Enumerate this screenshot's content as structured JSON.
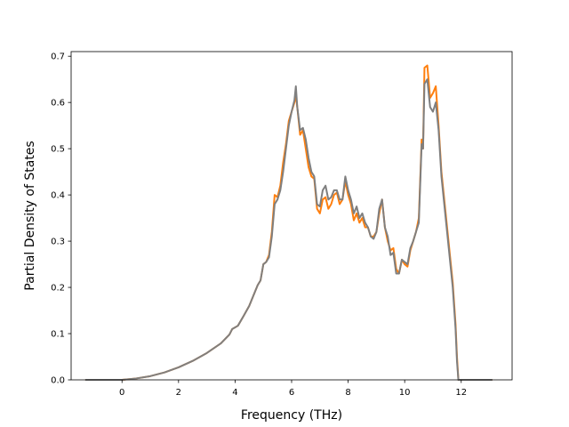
{
  "chart_data": {
    "type": "line",
    "title": "",
    "xlabel": "Frequency (THz)",
    "ylabel": "Partial Density of States",
    "xlim": [
      -1.8,
      13.8
    ],
    "ylim": [
      0.0,
      0.71
    ],
    "xticks": [
      0,
      2,
      4,
      6,
      8,
      10,
      12
    ],
    "xtick_labels": [
      "0",
      "2",
      "4",
      "6",
      "8",
      "10",
      "12"
    ],
    "yticks": [
      0.0,
      0.1,
      0.2,
      0.3,
      0.4,
      0.5,
      0.6,
      0.7
    ],
    "ytick_labels": [
      "0.0",
      "0.1",
      "0.2",
      "0.3",
      "0.4",
      "0.5",
      "0.6",
      "0.7"
    ],
    "grid": false,
    "legend": false,
    "series": [
      {
        "color": "#ff7f0e",
        "x": [
          -1.3,
          0.0,
          0.5,
          1.0,
          1.5,
          2.0,
          2.5,
          3.0,
          3.5,
          3.8,
          3.9,
          4.1,
          4.3,
          4.5,
          4.7,
          4.8,
          4.9,
          5.0,
          5.1,
          5.2,
          5.3,
          5.4,
          5.5,
          5.6,
          5.7,
          5.8,
          5.9,
          6.0,
          6.1,
          6.15,
          6.2,
          6.3,
          6.4,
          6.5,
          6.6,
          6.7,
          6.8,
          6.9,
          7.0,
          7.1,
          7.2,
          7.3,
          7.4,
          7.5,
          7.6,
          7.7,
          7.8,
          7.9,
          8.0,
          8.1,
          8.2,
          8.3,
          8.4,
          8.5,
          8.6,
          8.7,
          8.8,
          8.9,
          9.0,
          9.1,
          9.2,
          9.3,
          9.4,
          9.5,
          9.6,
          9.7,
          9.8,
          9.9,
          10.0,
          10.1,
          10.2,
          10.3,
          10.4,
          10.5,
          10.6,
          10.65,
          10.7,
          10.8,
          10.9,
          11.0,
          11.1,
          11.2,
          11.3,
          11.5,
          11.7,
          11.8,
          11.85,
          11.9,
          12.0,
          12.5,
          13.1
        ],
        "y": [
          0.0,
          0.0,
          0.003,
          0.008,
          0.016,
          0.027,
          0.041,
          0.058,
          0.079,
          0.098,
          0.11,
          0.117,
          0.138,
          0.16,
          0.19,
          0.205,
          0.215,
          0.25,
          0.255,
          0.27,
          0.32,
          0.4,
          0.395,
          0.42,
          0.47,
          0.51,
          0.56,
          0.58,
          0.6,
          0.615,
          0.59,
          0.53,
          0.54,
          0.5,
          0.46,
          0.44,
          0.435,
          0.37,
          0.36,
          0.39,
          0.395,
          0.37,
          0.38,
          0.4,
          0.405,
          0.38,
          0.39,
          0.43,
          0.4,
          0.38,
          0.345,
          0.36,
          0.34,
          0.35,
          0.33,
          0.33,
          0.31,
          0.31,
          0.32,
          0.36,
          0.39,
          0.33,
          0.3,
          0.28,
          0.285,
          0.24,
          0.23,
          0.26,
          0.25,
          0.245,
          0.28,
          0.3,
          0.32,
          0.35,
          0.52,
          0.5,
          0.675,
          0.68,
          0.61,
          0.62,
          0.635,
          0.55,
          0.45,
          0.33,
          0.21,
          0.12,
          0.05,
          0.0,
          0.0,
          0.0,
          0.0
        ]
      },
      {
        "color": "#7f7f7f",
        "x": [
          -1.3,
          0.0,
          0.5,
          1.0,
          1.5,
          2.0,
          2.5,
          3.0,
          3.5,
          3.8,
          3.9,
          4.1,
          4.3,
          4.5,
          4.7,
          4.8,
          4.9,
          5.0,
          5.1,
          5.2,
          5.3,
          5.4,
          5.5,
          5.6,
          5.7,
          5.8,
          5.9,
          6.0,
          6.1,
          6.15,
          6.2,
          6.3,
          6.4,
          6.5,
          6.6,
          6.7,
          6.8,
          6.9,
          7.0,
          7.1,
          7.2,
          7.3,
          7.4,
          7.5,
          7.6,
          7.7,
          7.8,
          7.9,
          8.0,
          8.1,
          8.2,
          8.3,
          8.4,
          8.5,
          8.6,
          8.7,
          8.8,
          8.9,
          9.0,
          9.1,
          9.2,
          9.3,
          9.4,
          9.5,
          9.6,
          9.7,
          9.8,
          9.9,
          10.0,
          10.1,
          10.2,
          10.3,
          10.4,
          10.5,
          10.6,
          10.65,
          10.7,
          10.8,
          10.9,
          11.0,
          11.1,
          11.2,
          11.3,
          11.5,
          11.7,
          11.8,
          11.85,
          11.9,
          12.0,
          12.5,
          13.1
        ],
        "y": [
          0.0,
          0.0,
          0.003,
          0.008,
          0.016,
          0.027,
          0.041,
          0.058,
          0.079,
          0.098,
          0.11,
          0.117,
          0.138,
          0.16,
          0.19,
          0.205,
          0.215,
          0.25,
          0.255,
          0.265,
          0.31,
          0.38,
          0.39,
          0.41,
          0.45,
          0.5,
          0.55,
          0.58,
          0.605,
          0.635,
          0.59,
          0.54,
          0.545,
          0.52,
          0.48,
          0.45,
          0.44,
          0.38,
          0.375,
          0.41,
          0.42,
          0.39,
          0.395,
          0.41,
          0.41,
          0.39,
          0.39,
          0.44,
          0.41,
          0.39,
          0.36,
          0.375,
          0.35,
          0.36,
          0.34,
          0.33,
          0.31,
          0.305,
          0.32,
          0.37,
          0.39,
          0.33,
          0.31,
          0.27,
          0.275,
          0.23,
          0.23,
          0.26,
          0.255,
          0.25,
          0.285,
          0.3,
          0.32,
          0.34,
          0.51,
          0.5,
          0.64,
          0.65,
          0.59,
          0.58,
          0.6,
          0.54,
          0.44,
          0.32,
          0.2,
          0.11,
          0.04,
          0.0,
          0.0,
          0.0,
          0.0
        ]
      }
    ]
  }
}
